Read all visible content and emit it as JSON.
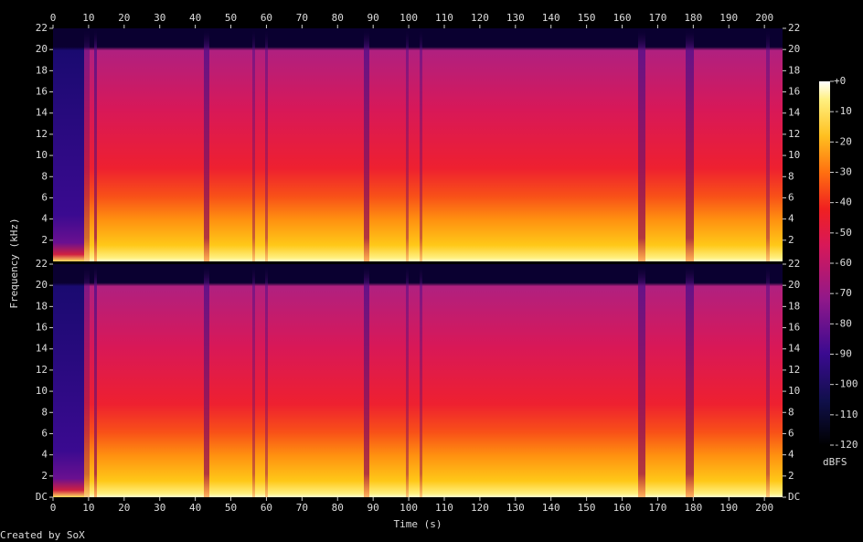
{
  "xlabel": "Time (s)",
  "ylabel": "Frequency (kHz)",
  "footer": "Created by SoX",
  "chart_data": [
    {
      "type": "spectrogram",
      "xlim": [
        0,
        205.1
      ],
      "xticks": [
        0,
        10,
        20,
        30,
        40,
        50,
        60,
        70,
        80,
        90,
        100,
        110,
        120,
        130,
        140,
        150,
        160,
        170,
        180,
        190,
        200
      ],
      "ylim": [
        0,
        22
      ],
      "yticks": [
        2,
        4,
        6,
        8,
        10,
        12,
        14,
        16,
        18,
        20,
        22
      ]
    },
    {
      "type": "spectrogram",
      "xlim": [
        0,
        205.1
      ],
      "xticks": [
        0,
        10,
        20,
        30,
        40,
        50,
        60,
        70,
        80,
        90,
        100,
        110,
        120,
        130,
        140,
        150,
        160,
        170,
        180,
        190,
        200
      ],
      "ylim": [
        0,
        22
      ],
      "yticks": [
        {
          "value": 0,
          "label": "DC"
        },
        2,
        4,
        6,
        8,
        10,
        12,
        14,
        16,
        18,
        20,
        22
      ]
    }
  ],
  "colorbar": {
    "label": "dBFS",
    "lim": [
      -120,
      0
    ],
    "ticks": [
      {
        "value": 0,
        "label": "+0"
      },
      -10,
      -20,
      -30,
      -40,
      -50,
      -60,
      -70,
      -80,
      -90,
      -100,
      -110,
      -120
    ]
  }
}
